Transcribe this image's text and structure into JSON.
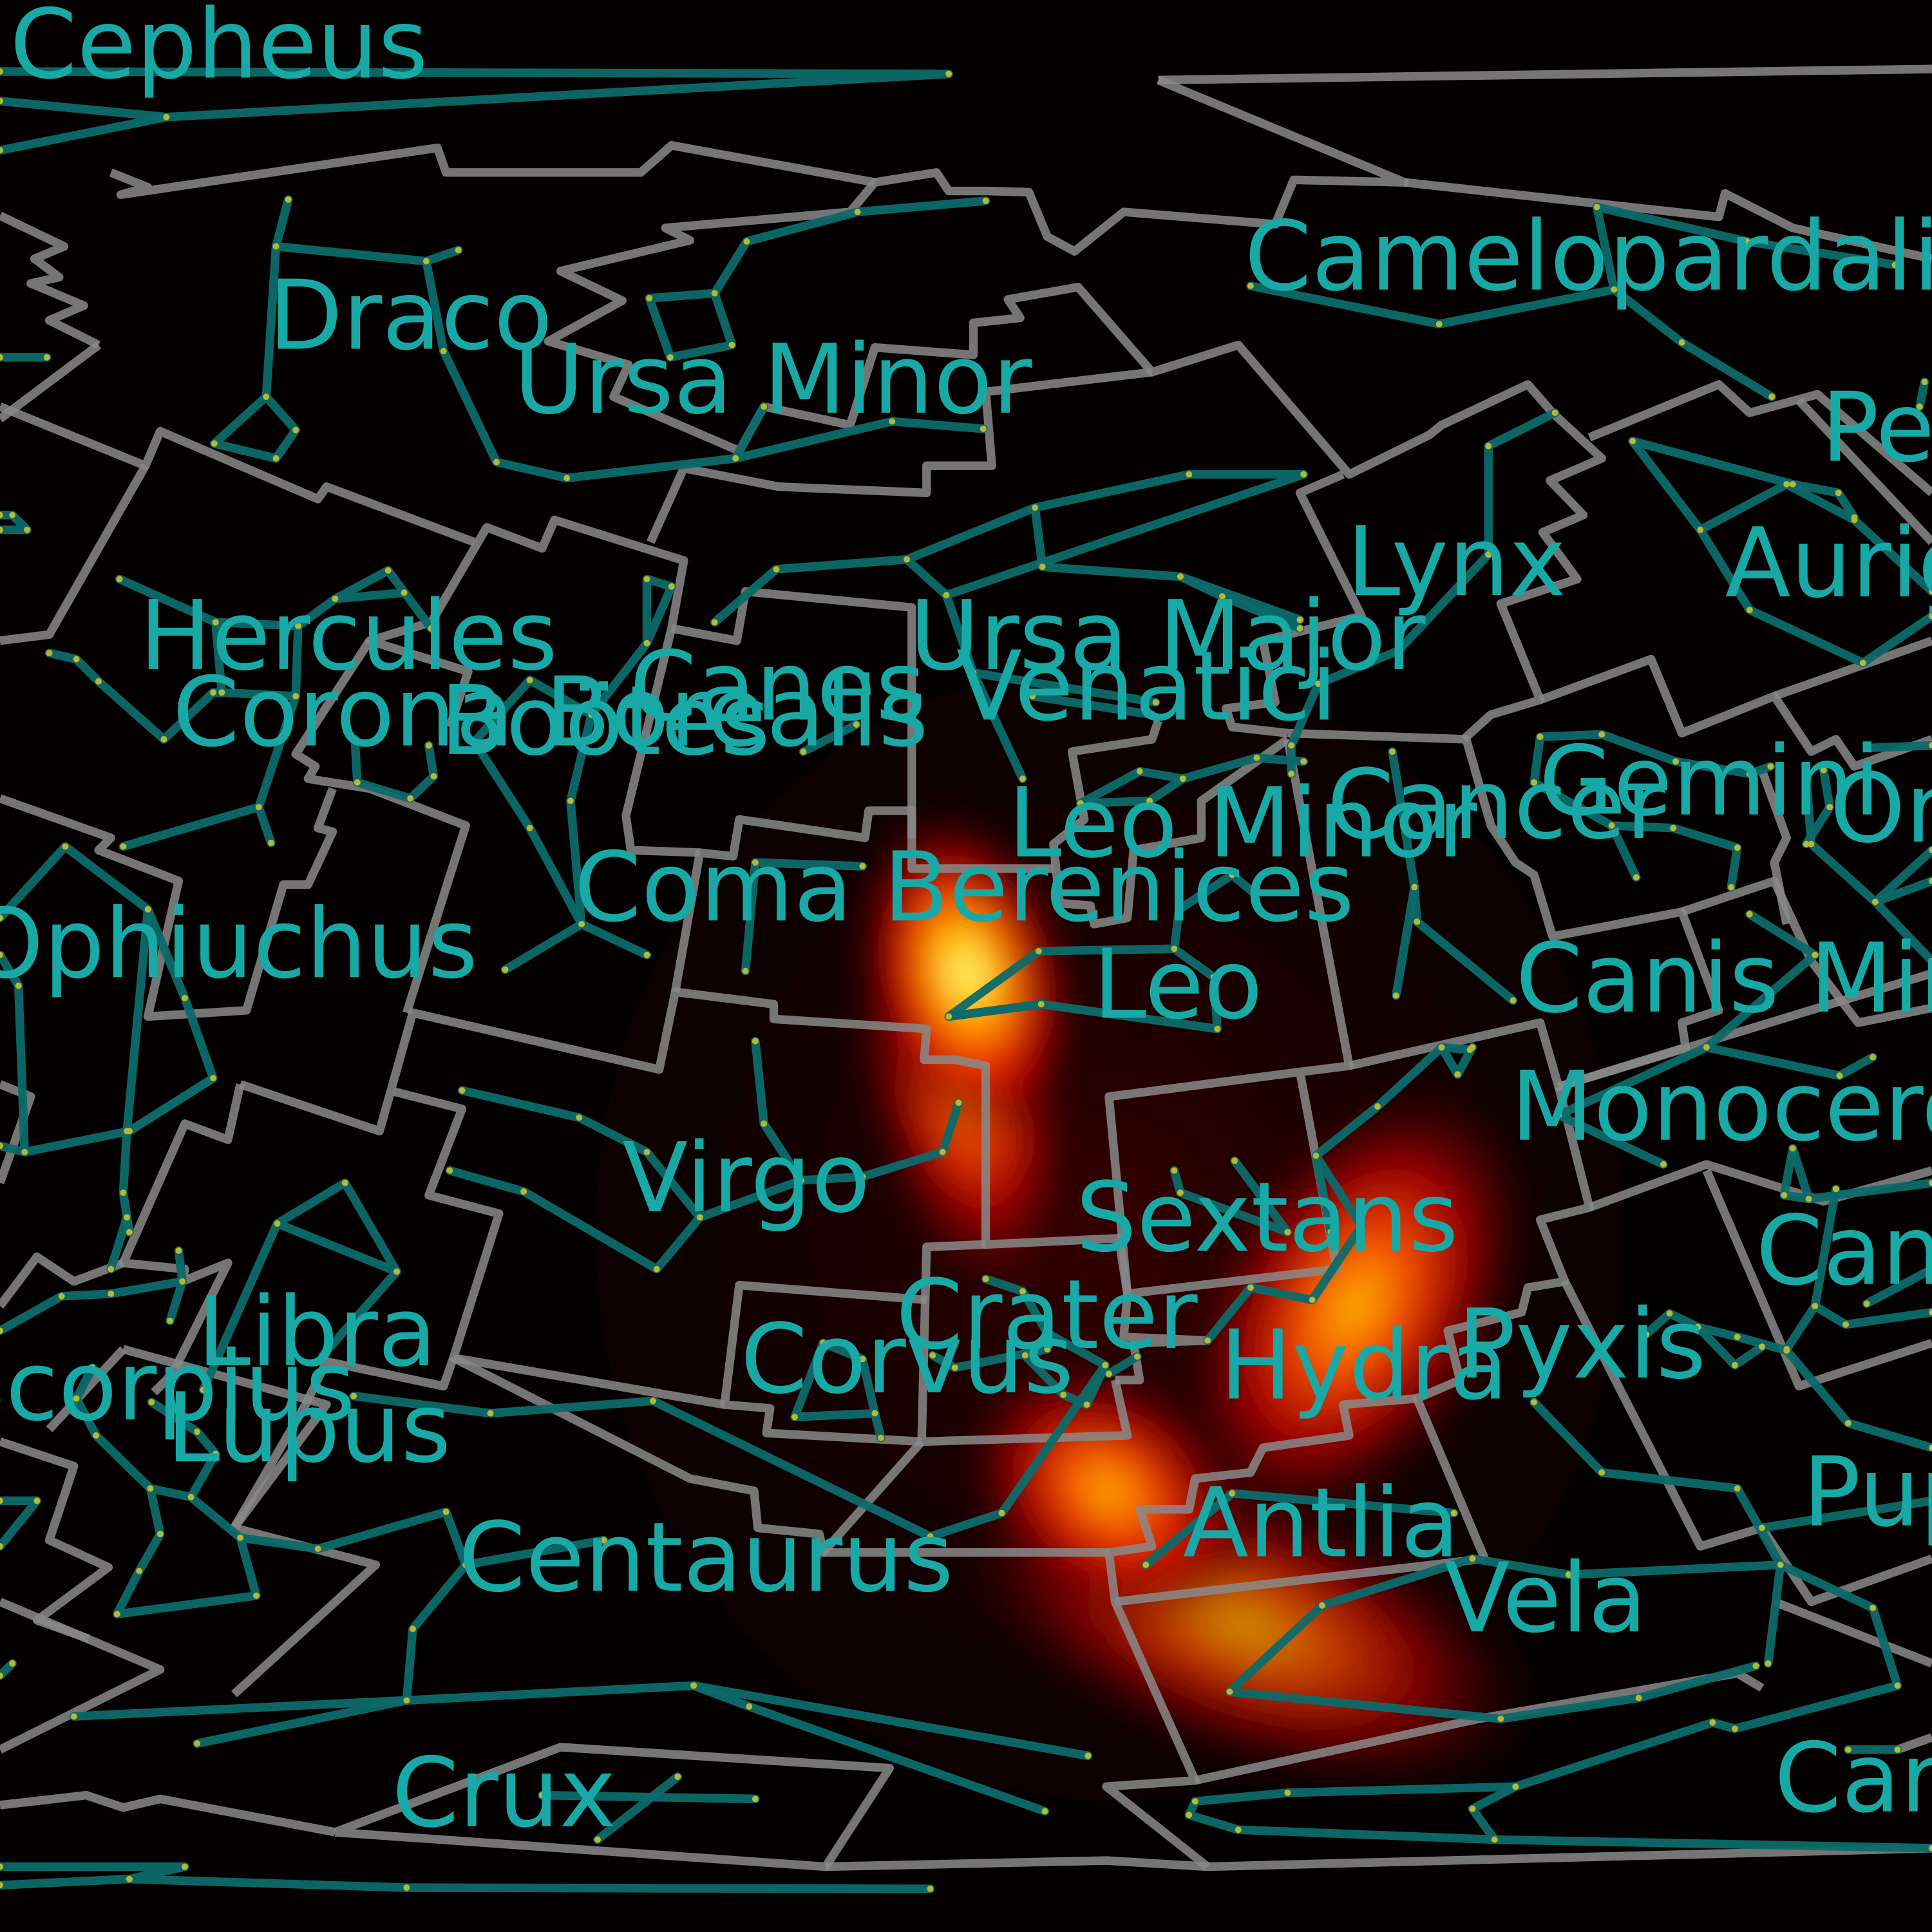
{
  "constellation_labels": [
    "Cepheus",
    "Draco",
    "Ursa Minor",
    "Camelopardalis",
    "Perseus",
    "Lynx",
    "Auriga",
    "Hercules",
    "Ursa Major",
    "Canes Venatici",
    "Corona Borealis",
    "Boötes",
    "Leo Minor",
    "Cancer",
    "Gemini",
    "Orion",
    "Coma Berenices",
    "Ophiuchus",
    "Leo",
    "Canis Minor",
    "Monoceros",
    "Virgo",
    "Sextans",
    "Canis Major",
    "Libra",
    "Crater",
    "Corvus",
    "Hydra",
    "Pyxis",
    "Scorpius",
    "Lupus",
    "Puppis",
    "Antlia",
    "Centaurus",
    "Vela",
    "Crux",
    "Carina"
  ],
  "colors": {
    "background": "#000000",
    "boundary": "#8a8a8a",
    "constellation_line": "#0d6a6a",
    "star": "#b8b830",
    "label": "#18a9a6",
    "heatmap": [
      "#200000",
      "#8b0000",
      "#e01000",
      "#ff8000",
      "#ffe000",
      "#ffffb0"
    ]
  },
  "heatmap": {
    "type": "probability-density",
    "peak_constellations": [
      "Coma Berenices",
      "Hydra",
      "Antlia"
    ]
  }
}
